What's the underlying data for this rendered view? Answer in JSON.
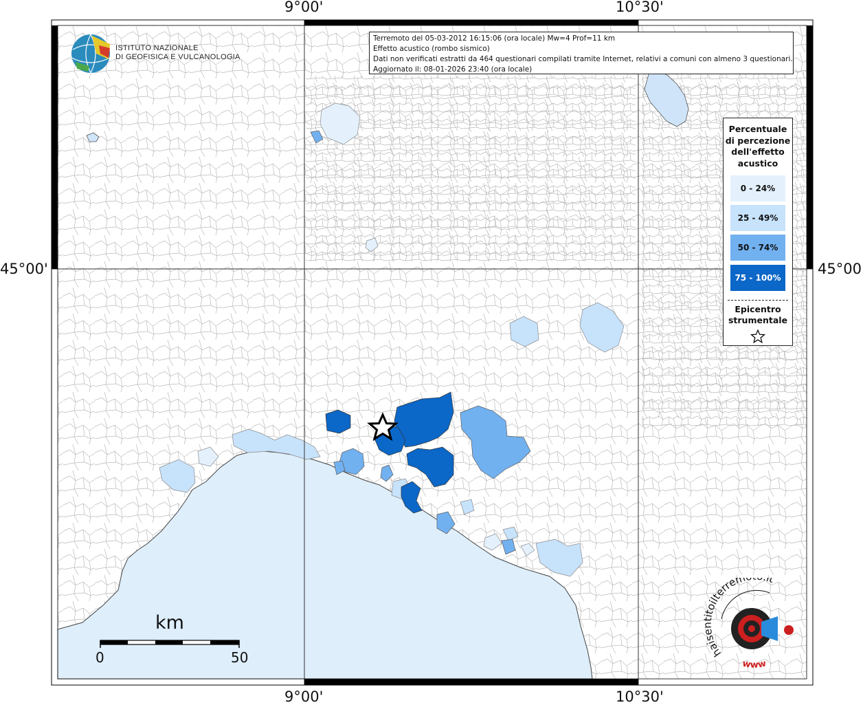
{
  "header": {
    "line1": "Terremoto del 05-03-2012 16:15:06 (ora locale) Mw=4 Prof=11 km",
    "line2": "Effetto acustico (rombo sismico)",
    "line3": "Dati non verificati estratti da 464 questionari compilati tramite Internet, relativi a comuni con almeno 3 questionari.",
    "line4": "Aggiornato il: 08-01-2026 23:40 (ora locale)"
  },
  "logo": {
    "line1": "ISTITUTO NAZIONALE",
    "line2": "DI GEOFISICA E VULCANOLOGIA"
  },
  "coordinates": {
    "top_left": "9°00'",
    "top_right": "10°30'",
    "bottom_left": "9°00'",
    "bottom_right": "10°30'",
    "left_lat": "45°00'",
    "right_lat": "45°00'"
  },
  "legend": {
    "title_lines": [
      "Percentuale",
      "di percezione",
      "dell'effetto",
      "acustico"
    ],
    "classes": [
      {
        "label": "0 - 24%",
        "color": "#e4f1fd",
        "text_color": "#111111"
      },
      {
        "label": "25 - 49%",
        "color": "#c7e2fb",
        "text_color": "#111111"
      },
      {
        "label": "50 - 74%",
        "color": "#72b1f0",
        "text_color": "#111111"
      },
      {
        "label": "75 - 100%",
        "color": "#0b67c8",
        "text_color": "#ffffff"
      }
    ],
    "epicenter_lines": [
      "Epicentro",
      "strumentale"
    ]
  },
  "scale": {
    "unit": "km",
    "min": "0",
    "max": "50"
  },
  "watermark": {
    "text": "haisentitoilterremoto.it",
    "url": "www"
  },
  "colors": {
    "sea": "#deeefb",
    "frame": "#000000",
    "grid": "#333333",
    "border": "#b4b4b4",
    "accent_red": "#cc1f1f"
  }
}
